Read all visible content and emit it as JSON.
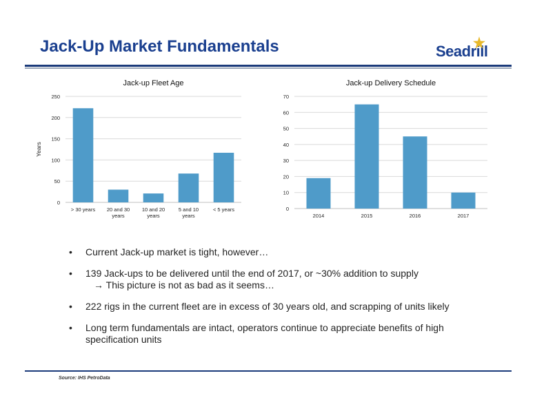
{
  "page": {
    "title": "Jack-Up Market Fundamentals",
    "logo_text": "Seadrill",
    "source": "Source: IHS PetroData"
  },
  "colors": {
    "title": "#1a3f8f",
    "bar": "#4f9bc9",
    "logo_star": "#e8b92b"
  },
  "chart_data": [
    {
      "type": "bar",
      "title": "Jack-up Fleet Age",
      "ylabel": "Years",
      "categories": [
        "> 30 years",
        "20 and 30 years",
        "10 and 20 years",
        "5 and 10 years",
        "< 5 years"
      ],
      "category_lines": [
        [
          "> 30 years"
        ],
        [
          "20 and 30",
          "years"
        ],
        [
          "10 and 20",
          "years"
        ],
        [
          "5 and 10",
          "years"
        ],
        [
          "< 5 years"
        ]
      ],
      "values": [
        222,
        30,
        21,
        68,
        117
      ],
      "ylim": [
        0,
        250
      ],
      "yticks": [
        0,
        50,
        100,
        150,
        200,
        250
      ],
      "grid": true
    },
    {
      "type": "bar",
      "title": "Jack-up Delivery Schedule",
      "categories": [
        "2014",
        "2015",
        "2016",
        "2017"
      ],
      "category_lines": [
        [
          "2014"
        ],
        [
          "2015"
        ],
        [
          "2016"
        ],
        [
          "2017"
        ]
      ],
      "values": [
        19,
        65,
        45,
        10
      ],
      "ylim": [
        0,
        70
      ],
      "yticks": [
        0,
        10,
        20,
        30,
        40,
        50,
        60,
        70
      ],
      "grid": true
    }
  ],
  "bullets": [
    {
      "text": "Current Jack-up  market is tight, however…",
      "sub": ""
    },
    {
      "text": "139 Jack-ups to be delivered until the end of 2017, or ~30% addition to supply",
      "sub": "→ This picture is not as bad as it seems…"
    },
    {
      "text": "222 rigs in the current fleet are in excess of 30 years old, and scrapping of units likely",
      "sub": ""
    },
    {
      "text": "Long term fundamentals are intact, operators continue to appreciate benefits of high specification units",
      "sub": ""
    }
  ]
}
